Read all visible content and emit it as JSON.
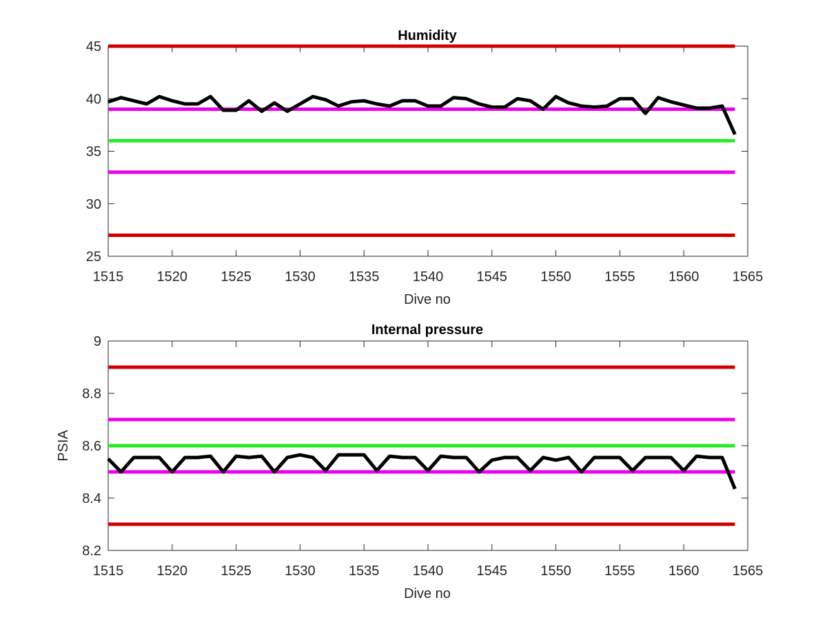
{
  "chart_data": [
    {
      "type": "line",
      "title": "Humidity",
      "xlabel": "Dive no",
      "ylabel": "",
      "xlim": [
        1515,
        1565
      ],
      "ylim": [
        25,
        45
      ],
      "xticks": [
        1515,
        1520,
        1525,
        1530,
        1535,
        1540,
        1545,
        1550,
        1555,
        1560,
        1565
      ],
      "yticks": [
        25,
        30,
        35,
        40,
        45
      ],
      "xtick_labels": [
        "1515",
        "1520",
        "1525",
        "1530",
        "1535",
        "1540",
        "1545",
        "1550",
        "1555",
        "1560",
        "1565"
      ],
      "ytick_labels": [
        "25",
        "30",
        "35",
        "40",
        "45"
      ],
      "grid": false,
      "series": [
        {
          "color": "#000000",
          "x": [
            1515,
            1516,
            1517,
            1518,
            1519,
            1520,
            1521,
            1522,
            1523,
            1524,
            1525,
            1526,
            1527,
            1528,
            1529,
            1530,
            1531,
            1532,
            1533,
            1534,
            1535,
            1536,
            1537,
            1538,
            1539,
            1540,
            1541,
            1542,
            1543,
            1544,
            1545,
            1546,
            1547,
            1548,
            1549,
            1550,
            1551,
            1552,
            1553,
            1554,
            1555,
            1556,
            1557,
            1558,
            1559,
            1560,
            1561,
            1562,
            1563,
            1564
          ],
          "values": [
            39.7,
            40.1,
            39.8,
            39.5,
            40.2,
            39.8,
            39.5,
            39.5,
            40.2,
            38.9,
            38.9,
            39.8,
            38.8,
            39.6,
            38.8,
            39.5,
            40.2,
            39.9,
            39.3,
            39.7,
            39.8,
            39.5,
            39.3,
            39.8,
            39.8,
            39.3,
            39.3,
            40.1,
            40.0,
            39.5,
            39.2,
            39.2,
            40.0,
            39.8,
            39.0,
            40.2,
            39.6,
            39.3,
            39.2,
            39.3,
            40.0,
            40.0,
            38.6,
            40.1,
            39.7,
            39.4,
            39.1,
            39.1,
            39.3,
            36.6
          ]
        }
      ],
      "reference_lines": [
        {
          "value": 45,
          "color": "#d00000"
        },
        {
          "value": 39,
          "color": "#ee00ee"
        },
        {
          "value": 36,
          "color": "#22ee22"
        },
        {
          "value": 33,
          "color": "#ee00ee"
        },
        {
          "value": 27,
          "color": "#d00000"
        }
      ],
      "ref_xrange": [
        1515,
        1564
      ]
    },
    {
      "type": "line",
      "title": "Internal pressure",
      "xlabel": "Dive no",
      "ylabel": "PSIA",
      "xlim": [
        1515,
        1565
      ],
      "ylim": [
        8.2,
        9
      ],
      "xticks": [
        1515,
        1520,
        1525,
        1530,
        1535,
        1540,
        1545,
        1550,
        1555,
        1560,
        1565
      ],
      "yticks": [
        8.2,
        8.4,
        8.6,
        8.8,
        9
      ],
      "xtick_labels": [
        "1515",
        "1520",
        "1525",
        "1530",
        "1535",
        "1540",
        "1545",
        "1550",
        "1555",
        "1560",
        "1565"
      ],
      "ytick_labels": [
        "8.2",
        "8.4",
        "8.6",
        "8.8",
        "9"
      ],
      "grid": false,
      "series": [
        {
          "color": "#000000",
          "x": [
            1515,
            1516,
            1517,
            1518,
            1519,
            1520,
            1521,
            1522,
            1523,
            1524,
            1525,
            1526,
            1527,
            1528,
            1529,
            1530,
            1531,
            1532,
            1533,
            1534,
            1535,
            1536,
            1537,
            1538,
            1539,
            1540,
            1541,
            1542,
            1543,
            1544,
            1545,
            1546,
            1547,
            1548,
            1549,
            1550,
            1551,
            1552,
            1553,
            1554,
            1555,
            1556,
            1557,
            1558,
            1559,
            1560,
            1561,
            1562,
            1563,
            1564
          ],
          "values": [
            8.55,
            8.5,
            8.555,
            8.555,
            8.555,
            8.5,
            8.555,
            8.555,
            8.56,
            8.5,
            8.56,
            8.555,
            8.56,
            8.5,
            8.555,
            8.565,
            8.555,
            8.505,
            8.565,
            8.565,
            8.565,
            8.505,
            8.56,
            8.555,
            8.555,
            8.505,
            8.56,
            8.555,
            8.555,
            8.5,
            8.545,
            8.555,
            8.555,
            8.505,
            8.555,
            8.545,
            8.555,
            8.5,
            8.555,
            8.555,
            8.555,
            8.505,
            8.555,
            8.555,
            8.555,
            8.505,
            8.56,
            8.555,
            8.555,
            8.435
          ]
        }
      ],
      "reference_lines": [
        {
          "value": 8.9,
          "color": "#d00000"
        },
        {
          "value": 8.7,
          "color": "#ee00ee"
        },
        {
          "value": 8.6,
          "color": "#22ee22"
        },
        {
          "value": 8.5,
          "color": "#ee00ee"
        },
        {
          "value": 8.3,
          "color": "#d00000"
        }
      ],
      "ref_xrange": [
        1515,
        1564
      ]
    }
  ]
}
